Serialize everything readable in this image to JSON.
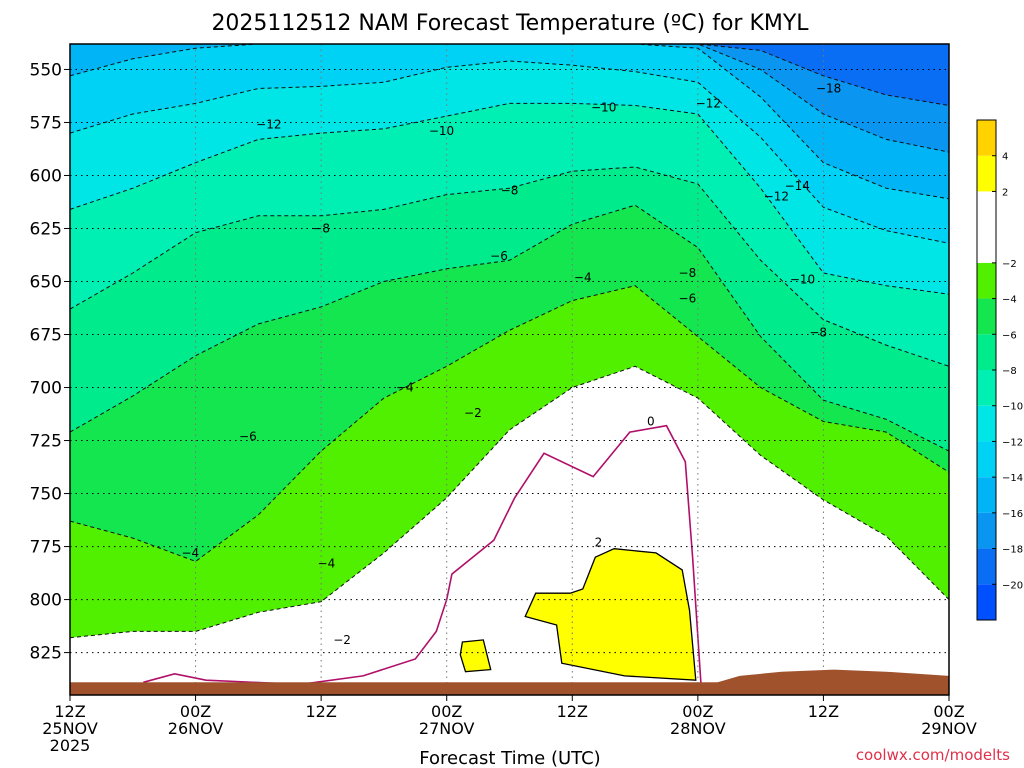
{
  "chart_data": {
    "type": "heatmap",
    "title": "2025112512 NAM Forecast Temperature (ºC) for KMYL",
    "xlabel": "Forecast Time (UTC)",
    "credit": "coolwx.com/modelts",
    "x_ticks": [
      {
        "hour": 0,
        "line1": "12Z",
        "line2": "25NOV",
        "line3": "2025"
      },
      {
        "hour": 12,
        "line1": "00Z",
        "line2": "26NOV",
        "line3": ""
      },
      {
        "hour": 24,
        "line1": "12Z",
        "line2": "",
        "line3": ""
      },
      {
        "hour": 36,
        "line1": "00Z",
        "line2": "27NOV",
        "line3": ""
      },
      {
        "hour": 48,
        "line1": "12Z",
        "line2": "",
        "line3": ""
      },
      {
        "hour": 60,
        "line1": "00Z",
        "line2": "28NOV",
        "line3": ""
      },
      {
        "hour": 72,
        "line1": "12Z",
        "line2": "",
        "line3": ""
      },
      {
        "hour": 84,
        "line1": "00Z",
        "line2": "29NOV",
        "line3": ""
      }
    ],
    "xlim": [
      0,
      84
    ],
    "y_ticks": [
      550,
      575,
      600,
      625,
      650,
      675,
      700,
      725,
      750,
      775,
      800,
      825
    ],
    "ylim": [
      538,
      845
    ],
    "surface_pressure": 839,
    "grid": true,
    "colorbar": {
      "position": "right",
      "min": -22,
      "max": 6,
      "step": 2,
      "tick_labels": [
        "-20",
        "-18",
        "-16",
        "-14",
        "-12",
        "-10",
        "-8",
        "-6",
        "-4",
        "-2",
        "2",
        "4"
      ],
      "bands": [
        {
          "lo": -22,
          "hi": -20,
          "color": "#0050ff"
        },
        {
          "lo": -20,
          "hi": -18,
          "color": "#0a6ef5"
        },
        {
          "lo": -18,
          "hi": -16,
          "color": "#0a96f0"
        },
        {
          "lo": -16,
          "hi": -14,
          "color": "#00b4f5"
        },
        {
          "lo": -14,
          "hi": -12,
          "color": "#00d2f5"
        },
        {
          "lo": -12,
          "hi": -10,
          "color": "#00e6e6"
        },
        {
          "lo": -10,
          "hi": -8,
          "color": "#00f0b4"
        },
        {
          "lo": -8,
          "hi": -6,
          "color": "#00eb8c"
        },
        {
          "lo": -6,
          "hi": -4,
          "color": "#14e650"
        },
        {
          "lo": -4,
          "hi": -2,
          "color": "#50f000"
        },
        {
          "lo": -2,
          "hi": 2,
          "color": "#ffffff"
        },
        {
          "lo": 2,
          "hi": 4,
          "color": "#ffff00"
        },
        {
          "lo": 4,
          "hi": 6,
          "color": "#ffd200"
        }
      ]
    },
    "ground_color": "#a0522d",
    "zero_contour_color": "#b0106a",
    "contour_hours": [
      0,
      6,
      12,
      18,
      24,
      30,
      36,
      42,
      48,
      54,
      60,
      66,
      72,
      78,
      84
    ],
    "contours": [
      {
        "level": -18,
        "p": [
          538,
          538,
          538,
          538,
          538,
          538,
          538,
          538,
          538,
          538,
          538,
          541,
          553,
          562,
          567
        ]
      },
      {
        "level": -16,
        "p": [
          538,
          538,
          538,
          538,
          538,
          538,
          538,
          538,
          538,
          538,
          538,
          550,
          571,
          583,
          589
        ]
      },
      {
        "level": -14,
        "p": [
          553,
          545,
          540,
          538,
          538,
          538,
          538,
          538,
          538,
          538,
          540,
          563,
          594,
          606,
          611
        ]
      },
      {
        "level": -12,
        "p": [
          580,
          571,
          566,
          559,
          558,
          556,
          549,
          546,
          548,
          551,
          556,
          582,
          615,
          626,
          632
        ]
      },
      {
        "level": -10,
        "p": [
          616,
          606,
          594,
          583,
          580,
          578,
          572,
          566,
          566,
          567,
          571,
          606,
          646,
          652,
          656
        ]
      },
      {
        "level": -8,
        "p": [
          663,
          646,
          627,
          619,
          619,
          616,
          609,
          606,
          598,
          596,
          604,
          640,
          668,
          680,
          690
        ]
      },
      {
        "level": -6,
        "p": [
          721,
          704,
          685,
          670,
          662,
          650,
          644,
          640,
          623,
          614,
          634,
          676,
          706,
          715,
          730
        ]
      },
      {
        "level": -4,
        "p": [
          763,
          771,
          782,
          760,
          730,
          705,
          690,
          673,
          659,
          652,
          676,
          700,
          716,
          721,
          740
        ]
      },
      {
        "level": -2,
        "p": [
          818,
          815,
          815,
          806,
          801,
          778,
          752,
          720,
          700,
          690,
          705,
          732,
          753,
          770,
          800
        ]
      }
    ],
    "labels": [
      {
        "text": "-18",
        "hour": 72.5,
        "p": 559
      },
      {
        "text": "-12",
        "hour": 61.0,
        "p": 566
      },
      {
        "text": "-12",
        "hour": 19.0,
        "p": 576
      },
      {
        "text": "-10",
        "hour": 51.0,
        "p": 568
      },
      {
        "text": "-10",
        "hour": 35.5,
        "p": 579
      },
      {
        "text": "-14",
        "hour": 69.5,
        "p": 605
      },
      {
        "text": "-12",
        "hour": 67.5,
        "p": 610
      },
      {
        "text": "-8",
        "hour": 42.0,
        "p": 607
      },
      {
        "text": "-8",
        "hour": 24.0,
        "p": 625
      },
      {
        "text": "-6",
        "hour": 41.0,
        "p": 638
      },
      {
        "text": "-8",
        "hour": 59.0,
        "p": 646
      },
      {
        "text": "-10",
        "hour": 70.0,
        "p": 649
      },
      {
        "text": "-4",
        "hour": 49.0,
        "p": 648
      },
      {
        "text": "-6",
        "hour": 59.0,
        "p": 658
      },
      {
        "text": "-8",
        "hour": 71.5,
        "p": 674
      },
      {
        "text": "-4",
        "hour": 32.0,
        "p": 700
      },
      {
        "text": "-6",
        "hour": 17.0,
        "p": 723
      },
      {
        "text": "-2",
        "hour": 38.5,
        "p": 712
      },
      {
        "text": "0",
        "hour": 55.5,
        "p": 716
      },
      {
        "text": "-4",
        "hour": 24.5,
        "p": 783
      },
      {
        "text": "-4",
        "hour": 11.5,
        "p": 778
      },
      {
        "text": "2",
        "hour": 50.5,
        "p": 773
      },
      {
        "text": "-2",
        "hour": 26.0,
        "p": 819
      }
    ]
  }
}
